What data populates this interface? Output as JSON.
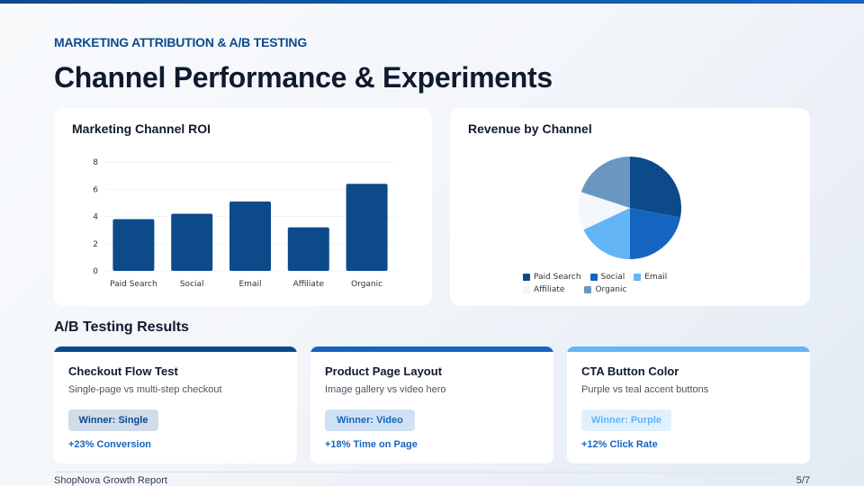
{
  "header": {
    "eyebrow": "MARKETING ATTRIBUTION & A/B TESTING",
    "title": "Channel Performance & Experiments"
  },
  "colors": {
    "primary": "#0d4a8a",
    "secondary": "#1565c0",
    "light": "#64b5f6",
    "pale": "#f3f6fa",
    "muted": "#6b96c0"
  },
  "chart_data": [
    {
      "type": "bar",
      "title": "Marketing Channel ROI",
      "categories": [
        "Paid Search",
        "Social",
        "Email",
        "Affiliate",
        "Organic"
      ],
      "values": [
        3.8,
        4.2,
        5.1,
        3.2,
        6.4
      ],
      "xlabel": "",
      "ylabel": "",
      "ylim": [
        0,
        8
      ],
      "yticks": [
        0,
        2,
        4,
        6,
        8
      ],
      "grid": true,
      "legend": false,
      "color": "#0d4a8a"
    },
    {
      "type": "pie",
      "title": "Revenue by Channel",
      "categories": [
        "Paid Search",
        "Social",
        "Email",
        "Affiliate",
        "Organic"
      ],
      "values": [
        28,
        22,
        18,
        12,
        20
      ],
      "colors": [
        "#0d4a8a",
        "#1565c0",
        "#64b5f6",
        "#f3f6fa",
        "#6b96c0"
      ],
      "legend_position": "bottom"
    }
  ],
  "ab_section": {
    "title": "A/B Testing Results",
    "tests": [
      {
        "title": "Checkout Flow Test",
        "description": "Single-page vs multi-step checkout",
        "winner": "Winner: Single",
        "metric": "+23% Conversion",
        "accent": "#0d4a8a",
        "badge_bg": "#d0dce9",
        "badge_fg": "#0d4a8a"
      },
      {
        "title": "Product Page Layout",
        "description": "Image gallery vs video hero",
        "winner": "Winner: Video",
        "metric": "+18% Time on Page",
        "accent": "#1565c0",
        "badge_bg": "#d1e1f4",
        "badge_fg": "#1565c0"
      },
      {
        "title": "CTA Button Color",
        "description": "Purple vs teal accent buttons",
        "winner": "Winner: Purple",
        "metric": "+12% Click Rate",
        "accent": "#64b5f6",
        "badge_bg": "#e0f0fd",
        "badge_fg": "#64b5f6"
      }
    ]
  },
  "footer": {
    "report_name": "ShopNova Growth Report",
    "page": "5/7"
  }
}
